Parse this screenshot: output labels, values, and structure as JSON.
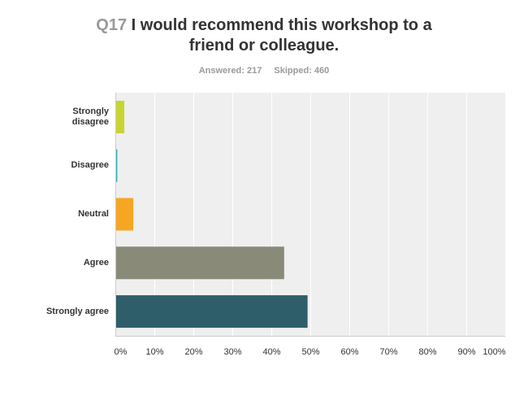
{
  "header": {
    "question_number": "Q17",
    "question_text_line1": "I would recommend this workshop to a",
    "question_text_line2": "friend or colleague.",
    "answered": "Answered: 217",
    "skipped": "Skipped: 460"
  },
  "chart_data": {
    "type": "bar",
    "orientation": "horizontal",
    "categories": [
      "Strongly disagree",
      "Disagree",
      "Neutral",
      "Agree",
      "Strongly agree"
    ],
    "category_lines": [
      [
        "Strongly",
        "disagree"
      ],
      [
        "Disagree"
      ],
      [
        "Neutral"
      ],
      [
        "Agree"
      ],
      [
        "Strongly agree"
      ]
    ],
    "values": [
      2.3,
      0.5,
      4.6,
      43.3,
      49.3
    ],
    "colors": [
      "#c8d430",
      "#2fb3b8",
      "#f5a623",
      "#8a8a78",
      "#2e5e6a"
    ],
    "xlim": [
      0,
      100
    ],
    "xticks": [
      "0%",
      "10%",
      "20%",
      "30%",
      "40%",
      "50%",
      "60%",
      "70%",
      "80%",
      "90%",
      "100%"
    ],
    "grid": true,
    "plot_background": "#efefef"
  }
}
